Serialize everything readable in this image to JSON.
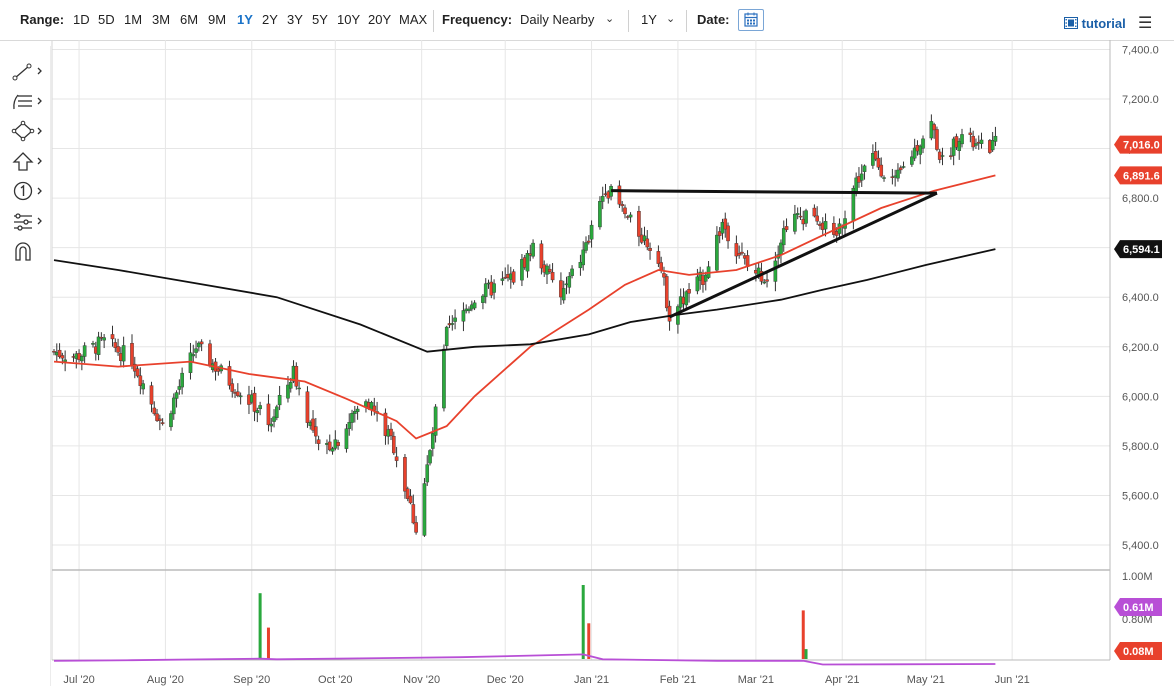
{
  "toolbar": {
    "range_label": "Range:",
    "ranges": [
      "1D",
      "5D",
      "1M",
      "3M",
      "6M",
      "9M",
      "1Y",
      "2Y",
      "3Y",
      "5Y",
      "10Y",
      "20Y",
      "MAX"
    ],
    "active_range": "1Y",
    "frequency_label": "Frequency:",
    "frequency_value": "Daily Nearby",
    "period_value": "1Y",
    "date_label": "Date:",
    "tutorial_label": "tutorial"
  },
  "colors": {
    "up": "#2aa83d",
    "down": "#e8412c",
    "ma_short": "#e8412c",
    "ma_long": "#111111",
    "volume_avg": "#b84fd6",
    "volume_flag": "#b84fd6",
    "price_flag": "#e8412c",
    "ma_long_flag": "#111111"
  },
  "chart_data": {
    "type": "candlestick",
    "price_axis": {
      "min": 5400,
      "max": 7400,
      "ticks": [
        "7,400.0",
        "7,200.0",
        "7,000.0",
        "6,800.0",
        "6,600.0",
        "6,400.0",
        "6,200.0",
        "6,000.0",
        "5,800.0",
        "5,600.0",
        "5,400.0"
      ]
    },
    "volume_axis": {
      "ticks": [
        "1.00M",
        "0.80M"
      ]
    },
    "x_labels": [
      "Jul '20",
      "Aug '20",
      "Sep '20",
      "Oct '20",
      "Nov '20",
      "Dec '20",
      "Jan '21",
      "Feb '21",
      "Mar '21",
      "Apr '21",
      "May '21",
      "Jun '21"
    ],
    "price_anchors": [
      [
        "2020-06-22",
        6180
      ],
      [
        "2020-06-30",
        6160
      ],
      [
        "2020-07-10",
        6220
      ],
      [
        "2020-07-20",
        6150
      ],
      [
        "2020-07-31",
        5880
      ],
      [
        "2020-08-12",
        6200
      ],
      [
        "2020-08-25",
        6050
      ],
      [
        "2020-09-08",
        5900
      ],
      [
        "2020-09-16",
        6100
      ],
      [
        "2020-09-25",
        5780
      ],
      [
        "2020-10-02",
        5830
      ],
      [
        "2020-10-12",
        6000
      ],
      [
        "2020-10-22",
        5800
      ],
      [
        "2020-10-30",
        5470
      ],
      [
        "2020-11-04",
        5770
      ],
      [
        "2020-11-10",
        6250
      ],
      [
        "2020-11-20",
        6400
      ],
      [
        "2020-12-04",
        6480
      ],
      [
        "2020-12-11",
        6600
      ],
      [
        "2020-12-21",
        6400
      ],
      [
        "2020-12-30",
        6600
      ],
      [
        "2021-01-06",
        6850
      ],
      [
        "2021-01-15",
        6700
      ],
      [
        "2021-01-25",
        6570
      ],
      [
        "2021-01-29",
        6330
      ],
      [
        "2021-02-10",
        6480
      ],
      [
        "2021-02-17",
        6700
      ],
      [
        "2021-02-26",
        6520
      ],
      [
        "2021-03-05",
        6480
      ],
      [
        "2021-03-12",
        6700
      ],
      [
        "2021-03-22",
        6750
      ],
      [
        "2021-03-29",
        6620
      ],
      [
        "2021-04-06",
        6870
      ],
      [
        "2021-04-12",
        6960
      ],
      [
        "2021-04-20",
        6860
      ],
      [
        "2021-04-26",
        6980
      ],
      [
        "2021-05-03",
        7100
      ],
      [
        "2021-05-07",
        6940
      ],
      [
        "2021-05-13",
        7060
      ],
      [
        "2021-05-20",
        7000
      ],
      [
        "2021-05-26",
        7016
      ]
    ],
    "series": [
      {
        "name": "MA50",
        "values": [
          [
            6140,
            "2020-06-22"
          ],
          [
            6120,
            "2020-07-15"
          ],
          [
            6140,
            "2020-08-10"
          ],
          [
            6090,
            "2020-08-31"
          ],
          [
            6060,
            "2020-09-20"
          ],
          [
            5990,
            "2020-10-05"
          ],
          [
            5900,
            "2020-10-23"
          ],
          [
            5830,
            "2020-10-30"
          ],
          [
            5880,
            "2020-11-10"
          ],
          [
            6000,
            "2020-11-20"
          ],
          [
            6200,
            "2020-12-10"
          ],
          [
            6350,
            "2020-12-31"
          ],
          [
            6450,
            "2021-01-13"
          ],
          [
            6510,
            "2021-01-25"
          ],
          [
            6490,
            "2021-02-05"
          ],
          [
            6510,
            "2021-02-22"
          ],
          [
            6570,
            "2021-03-10"
          ],
          [
            6650,
            "2021-03-25"
          ],
          [
            6760,
            "2021-04-15"
          ],
          [
            6830,
            "2021-05-04"
          ],
          [
            6891.6,
            "2021-05-26"
          ]
        ]
      },
      {
        "name": "MA200",
        "values": [
          [
            6550,
            "2020-06-22"
          ],
          [
            6510,
            "2020-07-15"
          ],
          [
            6460,
            "2020-08-10"
          ],
          [
            6400,
            "2020-09-10"
          ],
          [
            6290,
            "2020-10-10"
          ],
          [
            6180,
            "2020-11-03"
          ],
          [
            6200,
            "2020-11-20"
          ],
          [
            6210,
            "2020-12-10"
          ],
          [
            6250,
            "2020-12-31"
          ],
          [
            6300,
            "2021-01-15"
          ],
          [
            6330,
            "2021-02-01"
          ],
          [
            6350,
            "2021-02-15"
          ],
          [
            6390,
            "2021-03-10"
          ],
          [
            6430,
            "2021-03-25"
          ],
          [
            6470,
            "2021-04-10"
          ],
          [
            6530,
            "2021-05-01"
          ],
          [
            6594.1,
            "2021-05-26"
          ]
        ]
      }
    ],
    "trendlines": [
      {
        "from": [
          "2021-01-08",
          6830
        ],
        "to": [
          "2021-05-05",
          6820
        ]
      },
      {
        "from": [
          "2021-01-29",
          6320
        ],
        "to": [
          "2021-05-05",
          6820
        ]
      }
    ],
    "last_values": {
      "price": "7,016.0",
      "ma_short": "6,891.6",
      "ma_long": "6,594.1",
      "volume_avg": "0.61M",
      "volume": "0.08M"
    },
    "volume_spikes": [
      [
        "2020-09-04",
        0.92
      ],
      [
        "2020-09-07",
        0.76
      ],
      [
        "2020-12-29",
        0.96
      ],
      [
        "2020-12-31",
        0.78
      ],
      [
        "2021-03-18",
        0.84
      ],
      [
        "2021-03-19",
        0.66
      ]
    ]
  }
}
